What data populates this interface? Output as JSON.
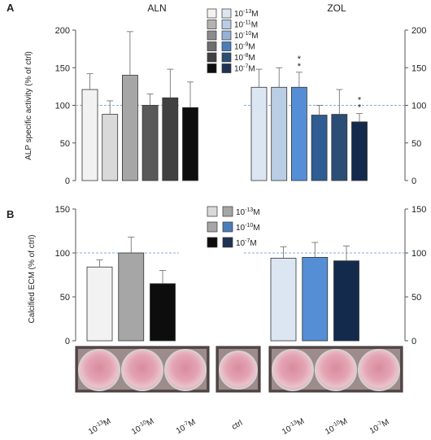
{
  "figure": {
    "panel_a_letter": "A",
    "panel_b_letter": "B",
    "aln_title": "ALN",
    "zol_title": "ZOL",
    "ctrl_label": "ctrl"
  },
  "chart_data": [
    {
      "id": "panel-a",
      "type": "bar",
      "ylabel": "ALP specific activity (% of ctrl)",
      "ylim": [
        0,
        200
      ],
      "yticks": [
        0,
        50,
        100,
        150,
        200
      ],
      "reference_line": 100,
      "legend": {
        "placement": "top-center",
        "entries": [
          {
            "base": "10",
            "exp": "-13",
            "unit": "M",
            "aln_color": "#f2f2f2",
            "zol_color": "#dce6f2"
          },
          {
            "base": "10",
            "exp": "-11",
            "unit": "M",
            "aln_color": "#b3b3b3",
            "zol_color": "#b9cde5"
          },
          {
            "base": "10",
            "exp": "-10",
            "unit": "M",
            "aln_color": "#8c8c8c",
            "zol_color": "#95b3d7"
          },
          {
            "base": "10",
            "exp": "-9",
            "unit": "M",
            "aln_color": "#6e6e6e",
            "zol_color": "#4a7ebb"
          },
          {
            "base": "10",
            "exp": "-8",
            "unit": "M",
            "aln_color": "#404040",
            "zol_color": "#2c4d75"
          },
          {
            "base": "10",
            "exp": "-7",
            "unit": "M",
            "aln_color": "#0d0d0d",
            "zol_color": "#1f3352"
          }
        ]
      },
      "groups": [
        {
          "name": "ALN",
          "concentrations": [
            "-13",
            "-11",
            "-10",
            "-9",
            "-8",
            "-7"
          ],
          "values": [
            121,
            88,
            140,
            100,
            110,
            97
          ],
          "errors": [
            21,
            18,
            58,
            15,
            38,
            34
          ],
          "colors": [
            "#f2f2f2",
            "#d9d9d9",
            "#a6a6a6",
            "#595959",
            "#404040",
            "#0d0d0d"
          ],
          "significance": [
            "",
            "",
            "",
            "",
            "",
            ""
          ]
        },
        {
          "name": "ZOL",
          "concentrations": [
            "-13",
            "-11",
            "-10",
            "-9",
            "-8",
            "-7"
          ],
          "values": [
            124,
            124,
            124,
            87,
            88,
            78
          ],
          "errors": [
            24,
            26,
            20,
            13,
            33,
            11
          ],
          "colors": [
            "#dce6f2",
            "#b9cde5",
            "#558ed5",
            "#2e5c93",
            "#2c4d75",
            "#142a4d"
          ],
          "significance": [
            "",
            "",
            "**",
            "",
            "",
            "**"
          ]
        }
      ]
    },
    {
      "id": "panel-b",
      "type": "bar",
      "ylabel": "Calcified ECM (% of ctrl)",
      "ylim": [
        0,
        150
      ],
      "yticks": [
        0,
        50,
        100,
        150
      ],
      "reference_line": 100,
      "legend": {
        "placement": "top-center",
        "entries": [
          {
            "base": "10",
            "exp": "-13",
            "unit": "M",
            "aln_color": "#d9d9d9",
            "zol_color": "#a6a6a6"
          },
          {
            "base": "10",
            "exp": "-10",
            "unit": "M",
            "aln_color": "#a6a6a6",
            "zol_color": "#4a7ebb"
          },
          {
            "base": "10",
            "exp": "-7",
            "unit": "M",
            "aln_color": "#0d0d0d",
            "zol_color": "#1f3352"
          }
        ]
      },
      "groups": [
        {
          "name": "ALN",
          "concentrations": [
            "-13",
            "-10",
            "-7"
          ],
          "values": [
            84,
            100,
            65
          ],
          "errors": [
            8,
            18,
            15
          ],
          "colors": [
            "#f2f2f2",
            "#a6a6a6",
            "#0d0d0d"
          ]
        },
        {
          "name": "ZOL",
          "concentrations": [
            "-13",
            "-10",
            "-7"
          ],
          "values": [
            94,
            95,
            91
          ],
          "errors": [
            13,
            17,
            17
          ],
          "colors": [
            "#dce6f2",
            "#558ed5",
            "#142a4d"
          ]
        }
      ],
      "well_labels": {
        "aln": [
          {
            "base": "10",
            "exp": "-13",
            "unit": "M"
          },
          {
            "base": "10",
            "exp": "-10",
            "unit": "M"
          },
          {
            "base": "10",
            "exp": "-7",
            "unit": "M"
          }
        ],
        "zol": [
          {
            "base": "10",
            "exp": "-13",
            "unit": "M"
          },
          {
            "base": "10",
            "exp": "-10",
            "unit": "M"
          },
          {
            "base": "10",
            "exp": "-7",
            "unit": "M"
          }
        ]
      }
    }
  ]
}
